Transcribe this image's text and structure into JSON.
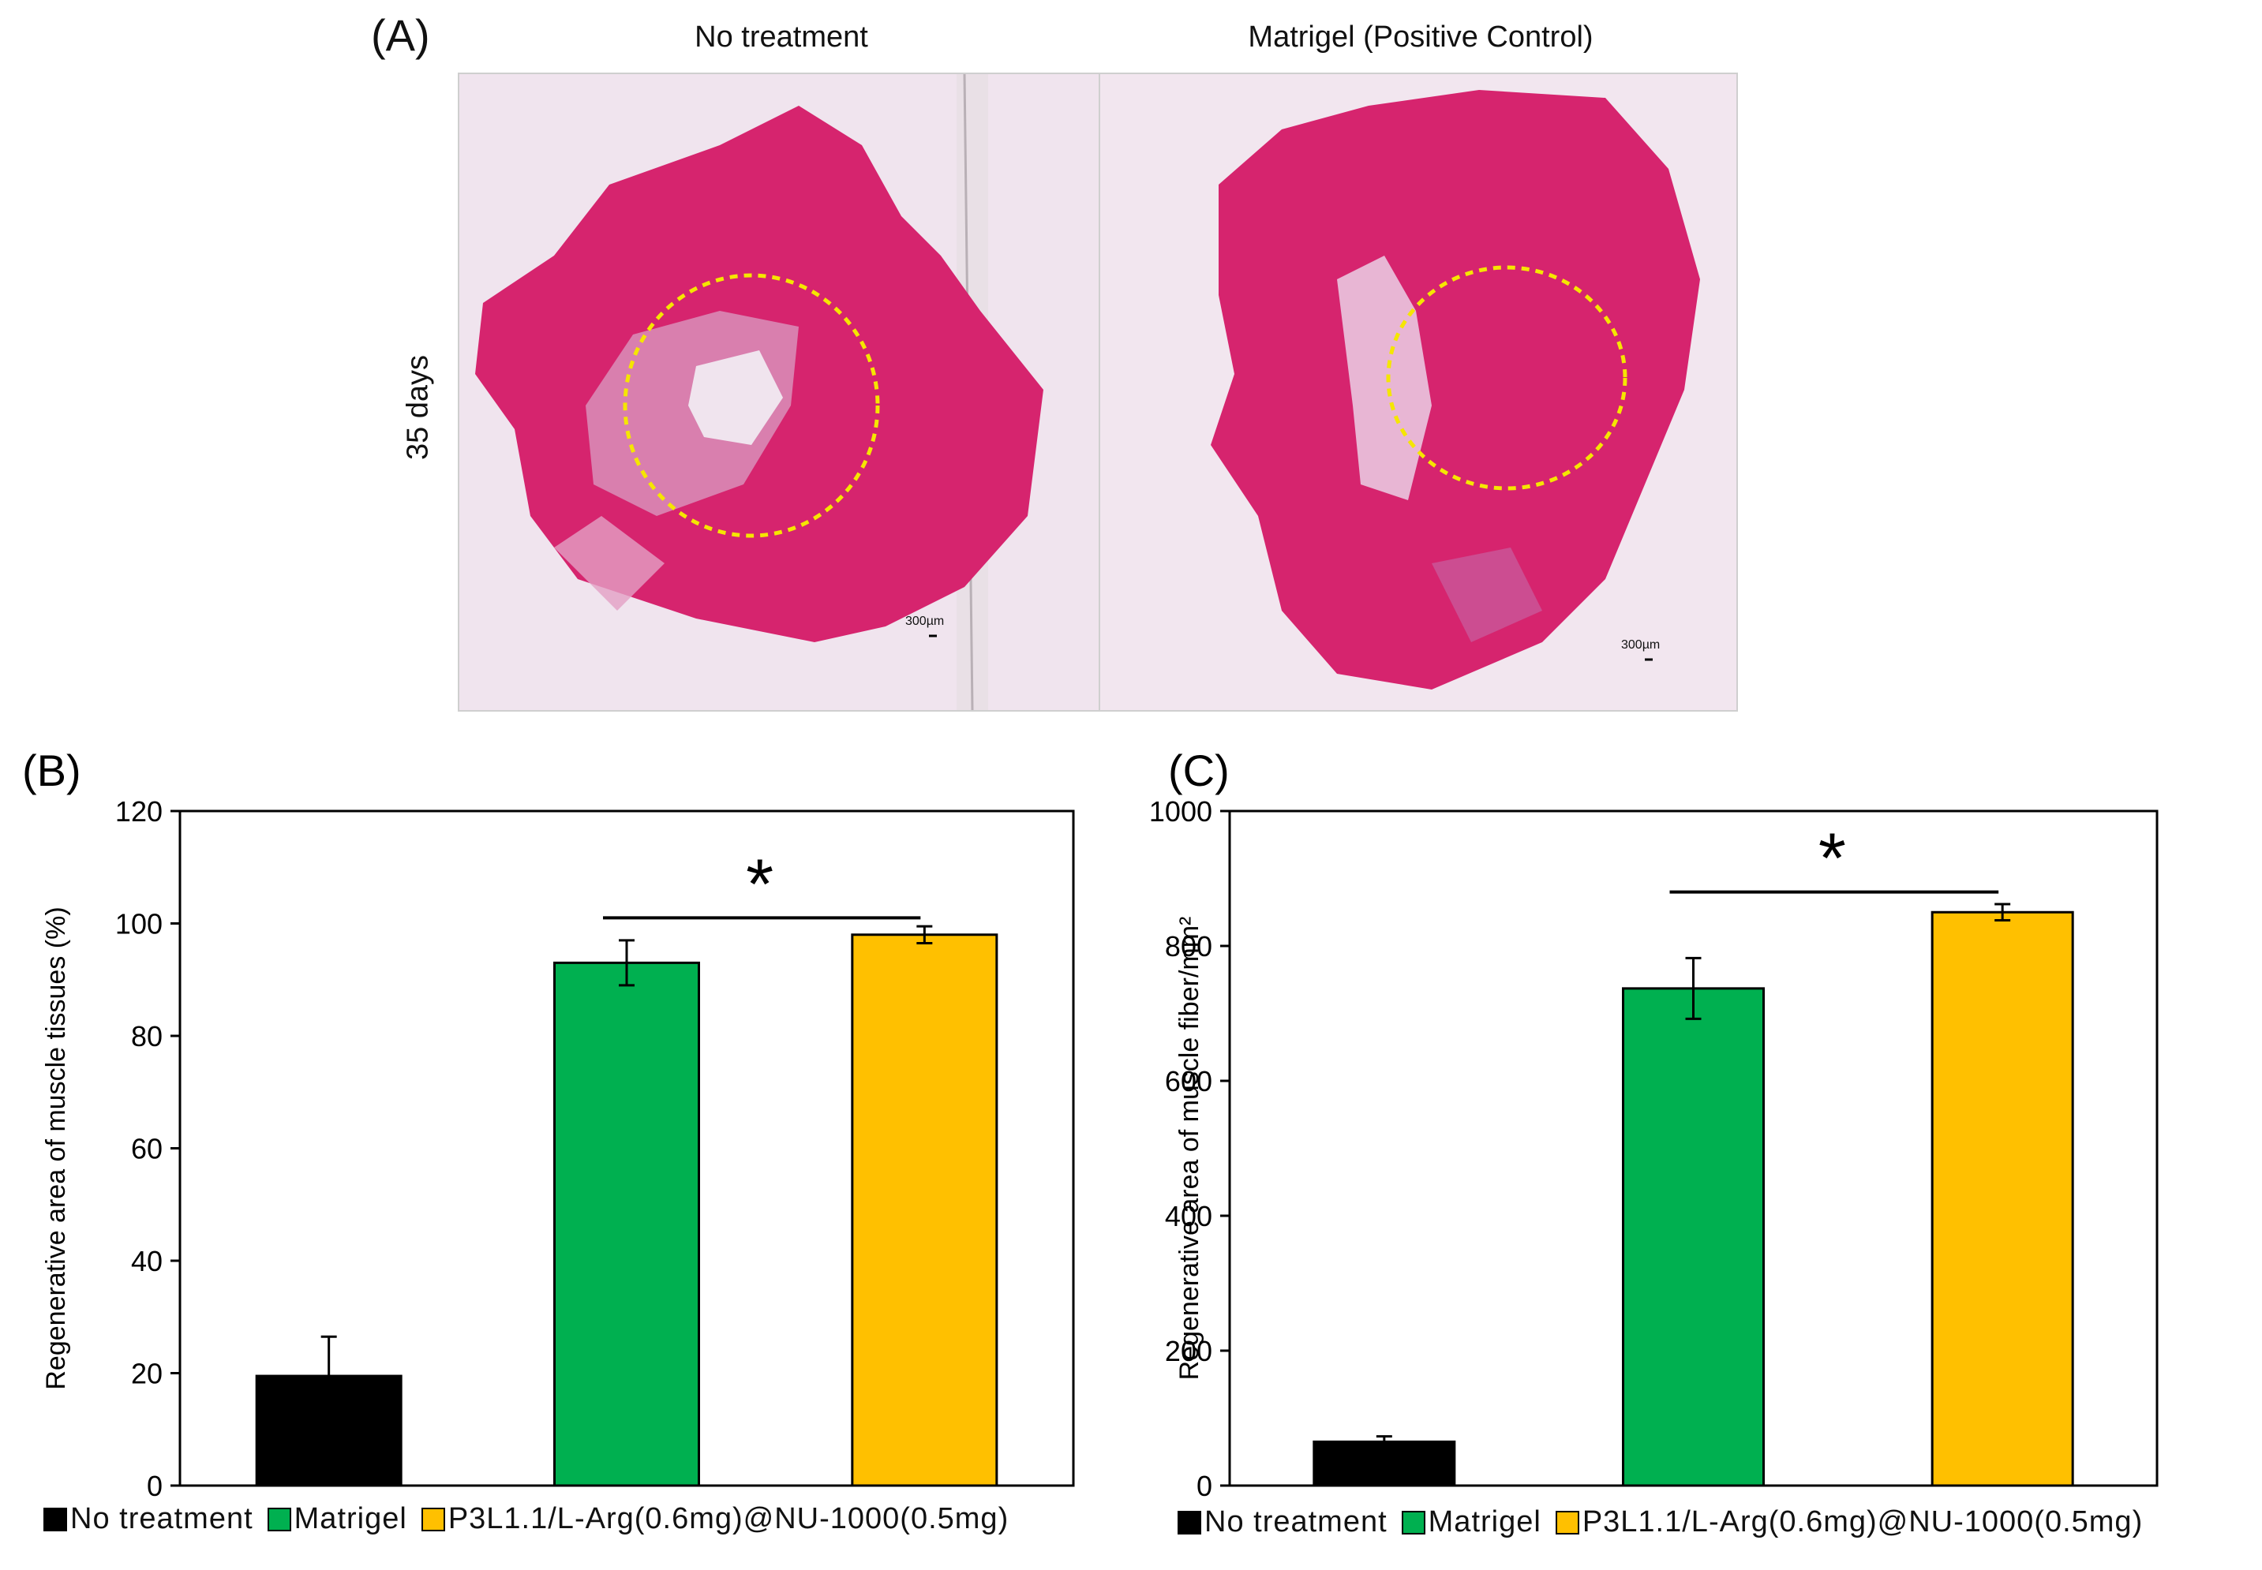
{
  "panel_a": {
    "letter": "(A)",
    "row_label": "35 days",
    "images": [
      {
        "title": "No treatment",
        "scale_bar": "300µm"
      },
      {
        "title": "Matrigel (Positive Control)",
        "scale_bar": "300µm"
      }
    ],
    "colors": {
      "tissue": "#d6246e",
      "background": "#f3e9f0",
      "circle": "#f5e600"
    }
  },
  "chart_data": [
    {
      "type": "bar",
      "panel": "(B)",
      "categories": [
        "No treatment",
        "Matrigel",
        "P3L1.1/L-Arg(0.6mg)@NU-1000(0.5mg)"
      ],
      "values": [
        19.5,
        93,
        98
      ],
      "errors": [
        7,
        4,
        1.5
      ],
      "colors": [
        "#000000",
        "#00b050",
        "#ffc000"
      ],
      "ylabel": "Regenerative area of muscle tissues (%)",
      "xlabel": "",
      "ylim": [
        0,
        120
      ],
      "yticks": [
        0,
        20,
        40,
        60,
        80,
        100,
        120
      ],
      "significance": {
        "from": 1,
        "to": 2,
        "label": "*",
        "y": 101
      },
      "legend": [
        "No treatment",
        "Matrigel",
        "P3L1.1/L-Arg(0.6mg)@NU-1000(0.5mg)"
      ],
      "legend_position": "bottom"
    },
    {
      "type": "bar",
      "panel": "(C)",
      "categories": [
        "No treatment",
        "Matrigel",
        "P3L1.1/L-Arg(0.6mg)@NU-1000(0.5mg)"
      ],
      "values": [
        65,
        737,
        850
      ],
      "errors": [
        8,
        45,
        12
      ],
      "colors": [
        "#000000",
        "#00b050",
        "#ffc000"
      ],
      "ylabel": "Regenerative area of muscle fiber/mm²",
      "xlabel": "",
      "ylim": [
        0,
        1000
      ],
      "yticks": [
        0,
        200,
        400,
        600,
        800,
        1000
      ],
      "significance": {
        "from": 1,
        "to": 2,
        "label": "*",
        "y": 880
      },
      "legend": [
        "No treatment",
        "Matrigel",
        "P3L1.1/L-Arg(0.6mg)@NU-1000(0.5mg)"
      ],
      "legend_position": "bottom"
    }
  ]
}
